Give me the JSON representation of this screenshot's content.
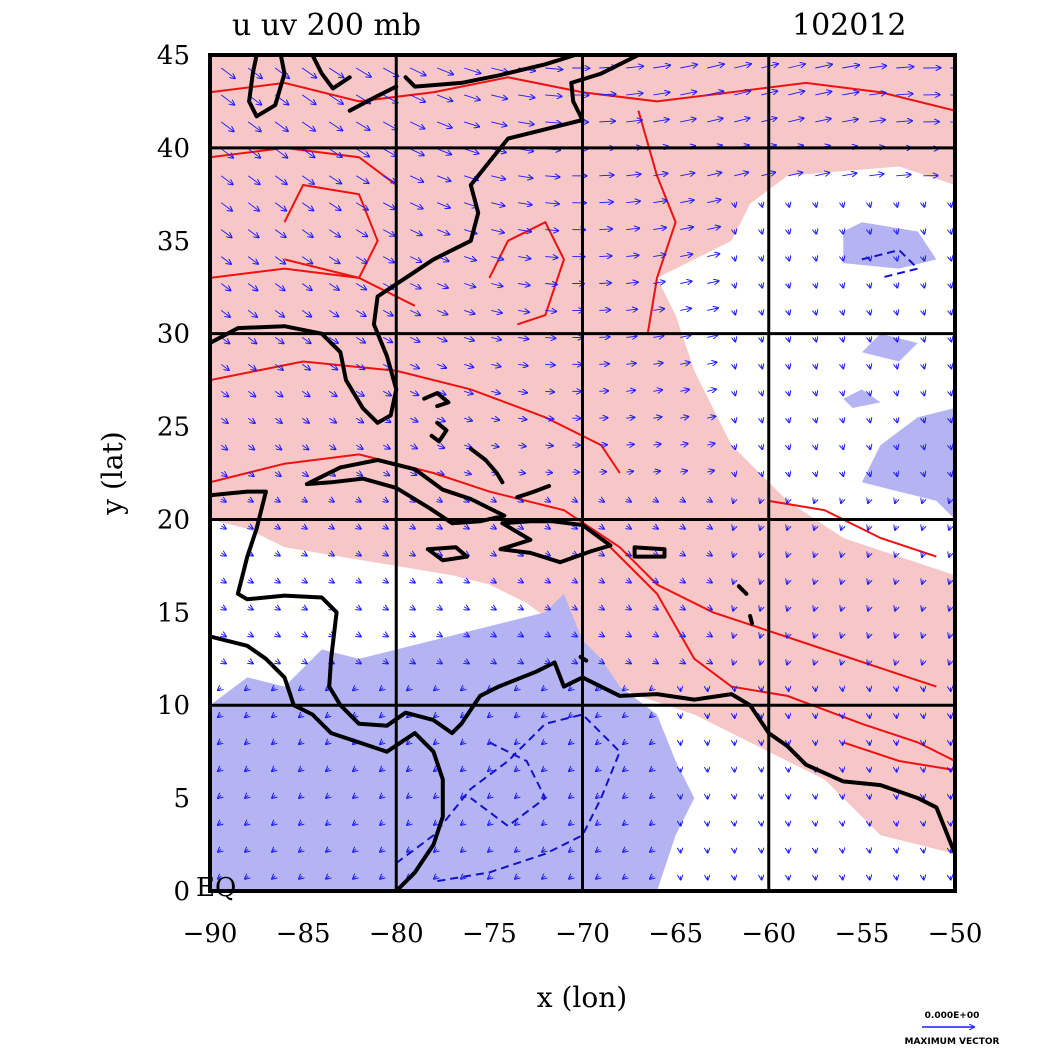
{
  "title": {
    "left": "u  uv 200 mb",
    "right": "102012"
  },
  "axes": {
    "xlabel": "x (lon)",
    "ylabel": "y (lat)",
    "xlim": [
      -90,
      -50
    ],
    "ylim": [
      0,
      45
    ],
    "xticks": [
      "−90",
      "−85",
      "−80",
      "−75",
      "−70",
      "−65",
      "−60",
      "−55",
      "−50"
    ],
    "yticks": [
      "0",
      "5",
      "10",
      "15",
      "20",
      "25",
      "30",
      "35",
      "40",
      "45"
    ],
    "grid_lon": [
      -80,
      -70,
      -60
    ],
    "grid_lat": [
      10,
      20,
      30,
      40
    ],
    "corner_tag": "EQ"
  },
  "legend": {
    "value": "0.000E+00",
    "label": "MAXIMUM VECTOR"
  },
  "colors": {
    "positive_fill": "#f7c6c6",
    "negative_fill": "#b4b4f2",
    "positive_contour": "#ee1111",
    "negative_contour": "#1111cc",
    "vector": "#1a1aff",
    "coast": "#000000"
  },
  "map_data": {
    "type": "contour+vector",
    "field": "u wind, 200 mb",
    "positive_regions": [
      [
        [
          -90,
          45
        ],
        [
          -50,
          45
        ],
        [
          -50,
          38
        ],
        [
          -53,
          39
        ],
        [
          -59,
          38.5
        ],
        [
          -61,
          37
        ],
        [
          -62,
          35
        ],
        [
          -64,
          34
        ],
        [
          -66,
          33
        ],
        [
          -65,
          31
        ],
        [
          -64,
          28
        ],
        [
          -62,
          24
        ],
        [
          -59,
          21
        ],
        [
          -56,
          19
        ],
        [
          -53,
          18
        ],
        [
          -50,
          17
        ],
        [
          -50,
          2
        ],
        [
          -54,
          3
        ],
        [
          -56,
          5
        ],
        [
          -57,
          6
        ],
        [
          -59,
          7
        ],
        [
          -61,
          8
        ],
        [
          -64,
          9.5
        ],
        [
          -67,
          10.5
        ],
        [
          -70,
          12
        ],
        [
          -71,
          14
        ],
        [
          -73,
          15.5
        ],
        [
          -75,
          16.5
        ],
        [
          -77,
          17
        ],
        [
          -80,
          17.5
        ],
        [
          -83,
          18
        ],
        [
          -86,
          18.5
        ],
        [
          -88,
          19.5
        ],
        [
          -90,
          20
        ]
      ]
    ],
    "negative_regions": [
      [
        [
          -90,
          0
        ],
        [
          -90,
          10
        ],
        [
          -88,
          11.5
        ],
        [
          -86,
          11
        ],
        [
          -84,
          13
        ],
        [
          -82,
          12.5
        ],
        [
          -80,
          13
        ],
        [
          -78,
          13.5
        ],
        [
          -76,
          14
        ],
        [
          -74,
          14.5
        ],
        [
          -72,
          15
        ],
        [
          -71,
          16
        ],
        [
          -70,
          13.5
        ],
        [
          -69,
          12.5
        ],
        [
          -68,
          11
        ],
        [
          -66,
          9.5
        ],
        [
          -65,
          7
        ],
        [
          -64,
          5
        ],
        [
          -65,
          3
        ],
        [
          -66,
          0
        ]
      ],
      [
        [
          -56,
          35.5
        ],
        [
          -55,
          36
        ],
        [
          -52,
          35.5
        ],
        [
          -51,
          34
        ],
        [
          -53,
          33.5
        ],
        [
          -56,
          33.8
        ]
      ],
      [
        [
          -55,
          29
        ],
        [
          -54,
          30
        ],
        [
          -52,
          29.5
        ],
        [
          -53,
          28.5
        ]
      ],
      [
        [
          -50,
          26
        ],
        [
          -52,
          25.5
        ],
        [
          -54,
          24
        ],
        [
          -55,
          22
        ],
        [
          -53,
          21.5
        ],
        [
          -51,
          21
        ],
        [
          -50,
          20
        ]
      ],
      [
        [
          -56,
          26.5
        ],
        [
          -55,
          27
        ],
        [
          -54,
          26.3
        ],
        [
          -55.5,
          26
        ]
      ]
    ],
    "positive_contours": [
      [
        [
          -90,
          43
        ],
        [
          -86,
          43.5
        ],
        [
          -82,
          42.5
        ],
        [
          -78,
          43
        ],
        [
          -74,
          43.8
        ],
        [
          -70,
          43
        ],
        [
          -66,
          42.5
        ],
        [
          -62,
          43
        ],
        [
          -58,
          43.5
        ],
        [
          -54,
          43
        ],
        [
          -50,
          42
        ]
      ],
      [
        [
          -90,
          39.5
        ],
        [
          -86,
          40
        ],
        [
          -82,
          39.5
        ],
        [
          -80,
          38
        ]
      ],
      [
        [
          -86,
          36
        ],
        [
          -85,
          38
        ],
        [
          -82,
          37.5
        ],
        [
          -81,
          35
        ],
        [
          -82,
          33
        ],
        [
          -84,
          33.5
        ],
        [
          -86,
          34
        ]
      ],
      [
        [
          -90,
          33
        ],
        [
          -86,
          33.5
        ],
        [
          -82,
          33
        ],
        [
          -79,
          31.5
        ]
      ],
      [
        [
          -90,
          27.5
        ],
        [
          -85,
          28.5
        ],
        [
          -80,
          28
        ],
        [
          -76,
          27
        ],
        [
          -72,
          25.5
        ],
        [
          -69,
          24
        ],
        [
          -68,
          22.5
        ]
      ],
      [
        [
          -90,
          22
        ],
        [
          -86,
          23
        ],
        [
          -82,
          23.5
        ],
        [
          -78,
          22.5
        ],
        [
          -75,
          21.5
        ],
        [
          -71,
          20.5
        ],
        [
          -68,
          18.5
        ],
        [
          -66,
          16.5
        ],
        [
          -63,
          15
        ],
        [
          -60,
          14
        ],
        [
          -57,
          13
        ],
        [
          -54,
          12
        ],
        [
          -51,
          11
        ]
      ],
      [
        [
          -69,
          19
        ],
        [
          -66,
          16
        ],
        [
          -64,
          12.5
        ],
        [
          -62,
          11
        ],
        [
          -59,
          10.5
        ],
        [
          -55,
          9
        ],
        [
          -52,
          8
        ],
        [
          -50,
          7
        ]
      ],
      [
        [
          -75,
          33
        ],
        [
          -74,
          35
        ],
        [
          -72,
          36
        ],
        [
          -71,
          34
        ],
        [
          -72,
          31
        ],
        [
          -73.5,
          30.5
        ]
      ],
      [
        [
          -67,
          42
        ],
        [
          -66,
          38.5
        ],
        [
          -65,
          36
        ],
        [
          -66,
          33
        ],
        [
          -66.5,
          30
        ]
      ],
      [
        [
          -60,
          21
        ],
        [
          -57,
          20.5
        ],
        [
          -54,
          19
        ],
        [
          -51,
          18
        ]
      ],
      [
        [
          -56,
          8
        ],
        [
          -53,
          7
        ],
        [
          -50,
          6.5
        ]
      ]
    ],
    "negative_contours": [
      [
        [
          -80,
          1.5
        ],
        [
          -78,
          3
        ],
        [
          -76,
          5.5
        ],
        [
          -74,
          7
        ],
        [
          -72,
          9
        ],
        [
          -70,
          9.5
        ],
        [
          -68,
          7.5
        ],
        [
          -69,
          5
        ],
        [
          -70,
          3
        ],
        [
          -72,
          2
        ],
        [
          -75,
          1
        ],
        [
          -78,
          0.5
        ]
      ],
      [
        [
          -75,
          8
        ],
        [
          -73,
          7
        ],
        [
          -72,
          5
        ],
        [
          -74,
          3.5
        ],
        [
          -76,
          5
        ]
      ],
      [
        [
          -55,
          34
        ],
        [
          -53,
          34.5
        ],
        [
          -52,
          33.5
        ],
        [
          -54,
          33
        ]
      ]
    ],
    "coastlines": [
      [
        [
          -90,
          29.5
        ],
        [
          -88.5,
          30.3
        ],
        [
          -86,
          30.4
        ],
        [
          -84,
          30
        ],
        [
          -83,
          29
        ],
        [
          -82.7,
          27.5
        ],
        [
          -81.8,
          26
        ],
        [
          -81,
          25.2
        ],
        [
          -80.3,
          25.6
        ],
        [
          -80,
          27
        ],
        [
          -80.5,
          28.8
        ],
        [
          -81.2,
          30.5
        ],
        [
          -81,
          32
        ],
        [
          -79.5,
          33
        ],
        [
          -78,
          34
        ],
        [
          -76,
          35
        ],
        [
          -75.6,
          36.5
        ],
        [
          -76,
          38
        ],
        [
          -75.2,
          39
        ],
        [
          -74,
          40.5
        ],
        [
          -72,
          41
        ],
        [
          -70,
          41.5
        ],
        [
          -70.5,
          42.5
        ],
        [
          -70.6,
          43.5
        ],
        [
          -69,
          44
        ],
        [
          -67,
          45
        ]
      ],
      [
        [
          -90,
          21.3
        ],
        [
          -88,
          21.5
        ],
        [
          -87,
          21.5
        ],
        [
          -87.5,
          19.5
        ],
        [
          -88,
          18
        ],
        [
          -88.5,
          16
        ],
        [
          -88,
          15.7
        ],
        [
          -86,
          15.9
        ],
        [
          -84,
          15.8
        ],
        [
          -83.2,
          15
        ],
        [
          -83.5,
          12.5
        ],
        [
          -83.6,
          11
        ],
        [
          -83,
          10
        ],
        [
          -82,
          9
        ],
        [
          -80.5,
          8.9
        ],
        [
          -79.5,
          9.6
        ],
        [
          -78,
          9.2
        ],
        [
          -77,
          8.5
        ],
        [
          -76.5,
          9
        ],
        [
          -75.5,
          10.5
        ],
        [
          -74.5,
          11
        ],
        [
          -72.5,
          11.8
        ],
        [
          -71.5,
          12.3
        ],
        [
          -71,
          11
        ],
        [
          -70,
          11.5
        ],
        [
          -68,
          10.5
        ],
        [
          -66,
          10.6
        ],
        [
          -64,
          10.3
        ],
        [
          -62,
          10.6
        ],
        [
          -61,
          10
        ],
        [
          -60,
          8.5
        ],
        [
          -59,
          7.8
        ],
        [
          -58,
          6.8
        ],
        [
          -56,
          5.9
        ],
        [
          -54,
          5.7
        ],
        [
          -52,
          5
        ],
        [
          -51,
          4.5
        ],
        [
          -50,
          2
        ]
      ],
      [
        [
          -90,
          13.7
        ],
        [
          -88,
          13.2
        ],
        [
          -87,
          12.5
        ],
        [
          -86,
          11.5
        ],
        [
          -85.5,
          10
        ],
        [
          -84.5,
          9.5
        ],
        [
          -83.5,
          8.5
        ],
        [
          -82,
          8
        ],
        [
          -80.5,
          7.5
        ],
        [
          -79,
          8.5
        ],
        [
          -78,
          7.5
        ],
        [
          -77.5,
          6
        ],
        [
          -77.5,
          4
        ],
        [
          -78,
          2.5
        ],
        [
          -79,
          1
        ],
        [
          -80,
          0
        ]
      ],
      [
        [
          -84.8,
          21.9
        ],
        [
          -83,
          22.8
        ],
        [
          -81,
          23.2
        ],
        [
          -79,
          22.7
        ],
        [
          -77.5,
          21.6
        ],
        [
          -76,
          21.1
        ],
        [
          -74.2,
          20.2
        ],
        [
          -75.5,
          19.9
        ],
        [
          -77,
          19.8
        ],
        [
          -78.2,
          20.6
        ],
        [
          -80,
          21.7
        ],
        [
          -81.8,
          22.2
        ],
        [
          -83.5,
          22
        ],
        [
          -84.8,
          21.9
        ]
      ],
      [
        [
          -74.3,
          19.8
        ],
        [
          -72.8,
          19.9
        ],
        [
          -71.6,
          19.9
        ],
        [
          -70,
          19.7
        ],
        [
          -68.5,
          18.6
        ],
        [
          -69.5,
          18.3
        ],
        [
          -71.2,
          17.7
        ],
        [
          -72.8,
          18.2
        ],
        [
          -74.4,
          18.4
        ],
        [
          -72.8,
          18.9
        ],
        [
          -74.3,
          19.8
        ]
      ],
      [
        [
          -78.3,
          18.4
        ],
        [
          -76.8,
          18.5
        ],
        [
          -76.2,
          18
        ],
        [
          -77.5,
          17.8
        ],
        [
          -78.3,
          18.4
        ]
      ],
      [
        [
          -67.2,
          18.5
        ],
        [
          -65.6,
          18.4
        ],
        [
          -65.6,
          18
        ],
        [
          -67.2,
          18
        ],
        [
          -67.2,
          18.5
        ]
      ],
      [
        [
          -78.5,
          26.5
        ],
        [
          -77.8,
          26.8
        ],
        [
          -77.2,
          26.3
        ],
        [
          -77.8,
          26.1
        ]
      ],
      [
        [
          -77.8,
          25.2
        ],
        [
          -77.3,
          24.8
        ],
        [
          -77.7,
          24.2
        ],
        [
          -78.1,
          24.5
        ]
      ],
      [
        [
          -76,
          23.8
        ],
        [
          -75.2,
          23.2
        ],
        [
          -74.6,
          22.5
        ],
        [
          -74.3,
          22
        ]
      ],
      [
        [
          -73.5,
          21.2
        ],
        [
          -72.6,
          21.5
        ],
        [
          -71.8,
          21.8
        ]
      ],
      [
        [
          -70.4,
          45
        ],
        [
          -72,
          44.5
        ],
        [
          -74.5,
          43.9
        ],
        [
          -76.5,
          43.5
        ],
        [
          -79,
          43.3
        ],
        [
          -79.5,
          43.8
        ]
      ],
      [
        [
          -82.5,
          42
        ],
        [
          -81,
          42.8
        ],
        [
          -80,
          43.3
        ]
      ],
      [
        [
          -87.5,
          45
        ],
        [
          -87.7,
          44
        ],
        [
          -87.9,
          42.5
        ],
        [
          -87.5,
          41.7
        ],
        [
          -86.5,
          42.3
        ],
        [
          -86,
          44
        ],
        [
          -86.2,
          45
        ]
      ],
      [
        [
          -84.5,
          45
        ],
        [
          -84,
          44
        ],
        [
          -83.4,
          43.2
        ],
        [
          -82.5,
          43.8
        ]
      ],
      [
        [
          -61.6,
          16.4
        ],
        [
          -61.2,
          16
        ]
      ],
      [
        [
          -61,
          14.8
        ],
        [
          -60.9,
          14.4
        ]
      ],
      [
        [
          -70.1,
          12.6
        ],
        [
          -69.8,
          12.4
        ]
      ]
    ]
  }
}
